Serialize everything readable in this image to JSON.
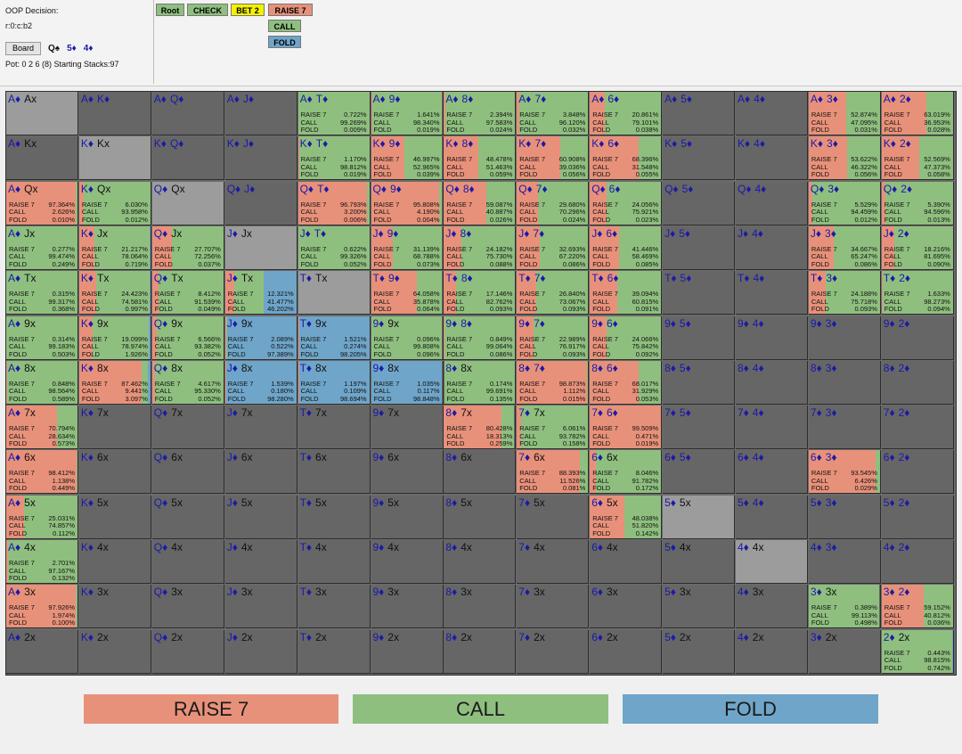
{
  "info": {
    "decision_label": "OOP Decision:",
    "node_path": "r:0:c:b2",
    "board_button": "Board",
    "board_cards": [
      "Q♠",
      "5♦",
      "4♦"
    ],
    "pot_text": "Pot: 0 2 6 (8) Starting Stacks:97"
  },
  "colors": {
    "raise": "#e8917a",
    "call": "#8fbf7f",
    "fold": "#6fa5c9",
    "bet": "#f4f000",
    "cell": "#666666",
    "diag": "#9c9c9c",
    "hand_text": "#1a1aa8"
  },
  "nav": [
    {
      "label": "Root",
      "color": "#8fbf7f"
    },
    {
      "label": "CHECK",
      "color": "#8fbf7f"
    },
    {
      "label": "BET 2",
      "color": "#f4f000"
    },
    {
      "label": "RAISE 7",
      "color": "#e8917a"
    },
    {
      "label": "CALL",
      "color": "#8fbf7f"
    },
    {
      "label": "FOLD",
      "color": "#6fa5c9"
    }
  ],
  "action_names": [
    "RAISE 7",
    "CALL",
    "FOLD"
  ],
  "grid": [
    [
      [
        "A♦ Ax",
        null
      ],
      [
        "A♦ K♦",
        null
      ],
      [
        "A♦ Q♦",
        null
      ],
      [
        "A♦ J♦",
        null
      ],
      [
        "A♦ T♦",
        [
          "0.722%",
          "99.269%",
          "0.009%"
        ]
      ],
      [
        "A♦ 9♦",
        [
          "1.641%",
          "98.340%",
          "0.019%"
        ]
      ],
      [
        "A♦ 8♦",
        [
          "2.394%",
          "97.583%",
          "0.024%"
        ]
      ],
      [
        "A♦ 7♦",
        [
          "3.848%",
          "96.120%",
          "0.032%"
        ]
      ],
      [
        "A♦ 6♦",
        [
          "20.861%",
          "79.101%",
          "0.038%"
        ]
      ],
      [
        "A♦ 5♦",
        null
      ],
      [
        "A♦ 4♦",
        null
      ],
      [
        "A♦ 3♦",
        [
          "52.874%",
          "47.095%",
          "0.031%"
        ]
      ],
      [
        "A♦ 2♦",
        [
          "63.019%",
          "36.953%",
          "0.028%"
        ]
      ]
    ],
    [
      [
        "A♦ Kx",
        null
      ],
      [
        "K♦ Kx",
        null
      ],
      [
        "K♦ Q♦",
        null
      ],
      [
        "K♦ J♦",
        null
      ],
      [
        "K♦ T♦",
        [
          "1.170%",
          "98.812%",
          "0.019%"
        ]
      ],
      [
        "K♦ 9♦",
        [
          "46.997%",
          "52.965%",
          "0.039%"
        ]
      ],
      [
        "K♦ 8♦",
        [
          "48.478%",
          "51.463%",
          "0.059%"
        ]
      ],
      [
        "K♦ 7♦",
        [
          "60.908%",
          "39.036%",
          "0.056%"
        ]
      ],
      [
        "K♦ 6♦",
        [
          "68.396%",
          "31.548%",
          "0.055%"
        ]
      ],
      [
        "K♦ 5♦",
        null
      ],
      [
        "K♦ 4♦",
        null
      ],
      [
        "K♦ 3♦",
        [
          "53.622%",
          "46.322%",
          "0.056%"
        ]
      ],
      [
        "K♦ 2♦",
        [
          "52.569%",
          "47.373%",
          "0.058%"
        ]
      ]
    ],
    [
      [
        "A♦ Qx",
        [
          "97.364%",
          "2.626%",
          "0.010%"
        ]
      ],
      [
        "K♦ Qx",
        [
          "6.030%",
          "93.958%",
          "0.012%"
        ]
      ],
      [
        "Q♦ Qx",
        null
      ],
      [
        "Q♦ J♦",
        null
      ],
      [
        "Q♦ T♦",
        [
          "96.793%",
          "3.200%",
          "0.006%"
        ]
      ],
      [
        "Q♦ 9♦",
        [
          "95.808%",
          "4.190%",
          "0.004%"
        ]
      ],
      [
        "Q♦ 8♦",
        [
          "59.087%",
          "40.887%",
          "0.026%"
        ]
      ],
      [
        "Q♦ 7♦",
        [
          "29.680%",
          "70.296%",
          "0.024%"
        ]
      ],
      [
        "Q♦ 6♦",
        [
          "24.056%",
          "75.921%",
          "0.023%"
        ]
      ],
      [
        "Q♦ 5♦",
        null
      ],
      [
        "Q♦ 4♦",
        null
      ],
      [
        "Q♦ 3♦",
        [
          "5.529%",
          "94.459%",
          "0.012%"
        ]
      ],
      [
        "Q♦ 2♦",
        [
          "5.390%",
          "94.596%",
          "0.013%"
        ]
      ]
    ],
    [
      [
        "A♦ Jx",
        [
          "0.277%",
          "99.474%",
          "0.249%"
        ]
      ],
      [
        "K♦ Jx",
        [
          "21.217%",
          "78.064%",
          "0.719%"
        ]
      ],
      [
        "Q♦ Jx",
        [
          "27.707%",
          "72.256%",
          "0.037%"
        ]
      ],
      [
        "J♦ Jx",
        null
      ],
      [
        "J♦ T♦",
        [
          "0.622%",
          "99.326%",
          "0.052%"
        ]
      ],
      [
        "J♦ 9♦",
        [
          "31.139%",
          "68.788%",
          "0.073%"
        ]
      ],
      [
        "J♦ 8♦",
        [
          "24.182%",
          "75.730%",
          "0.088%"
        ]
      ],
      [
        "J♦ 7♦",
        [
          "32.693%",
          "67.220%",
          "0.086%"
        ]
      ],
      [
        "J♦ 6♦",
        [
          "41.446%",
          "58.469%",
          "0.085%"
        ]
      ],
      [
        "J♦ 5♦",
        null
      ],
      [
        "J♦ 4♦",
        null
      ],
      [
        "J♦ 3♦",
        [
          "34.667%",
          "65.247%",
          "0.086%"
        ]
      ],
      [
        "J♦ 2♦",
        [
          "18.216%",
          "81.695%",
          "0.090%"
        ]
      ]
    ],
    [
      [
        "A♦ Tx",
        [
          "0.315%",
          "99.317%",
          "0.368%"
        ]
      ],
      [
        "K♦ Tx",
        [
          "24.423%",
          "74.581%",
          "0.997%"
        ]
      ],
      [
        "Q♦ Tx",
        [
          "8.412%",
          "91.539%",
          "0.049%"
        ]
      ],
      [
        "J♦ Tx",
        [
          "12.321%",
          "41.477%",
          "46.202%"
        ]
      ],
      [
        "T♦ Tx",
        null
      ],
      [
        "T♦ 9♦",
        [
          "64.058%",
          "35.878%",
          "0.064%"
        ]
      ],
      [
        "T♦ 8♦",
        [
          "17.146%",
          "82.762%",
          "0.093%"
        ]
      ],
      [
        "T♦ 7♦",
        [
          "26.840%",
          "73.067%",
          "0.093%"
        ]
      ],
      [
        "T♦ 6♦",
        [
          "39.094%",
          "60.815%",
          "0.091%"
        ]
      ],
      [
        "T♦ 5♦",
        null
      ],
      [
        "T♦ 4♦",
        null
      ],
      [
        "T♦ 3♦",
        [
          "24.188%",
          "75.718%",
          "0.093%"
        ]
      ],
      [
        "T♦ 2♦",
        [
          "1.633%",
          "98.273%",
          "0.094%"
        ]
      ]
    ],
    [
      [
        "A♦ 9x",
        [
          "0.314%",
          "99.183%",
          "0.503%"
        ]
      ],
      [
        "K♦ 9x",
        [
          "19.099%",
          "78.974%",
          "1.926%"
        ]
      ],
      [
        "Q♦ 9x",
        [
          "6.566%",
          "93.382%",
          "0.052%"
        ]
      ],
      [
        "J♦ 9x",
        [
          "2.089%",
          "0.522%",
          "97.389%"
        ]
      ],
      [
        "T♦ 9x",
        [
          "1.521%",
          "0.274%",
          "98.205%"
        ]
      ],
      [
        "9♦ 9x",
        [
          "0.096%",
          "99.808%",
          "0.096%"
        ]
      ],
      [
        "9♦ 8♦",
        [
          "0.849%",
          "99.064%",
          "0.086%"
        ]
      ],
      [
        "9♦ 7♦",
        [
          "22.989%",
          "76.917%",
          "0.093%"
        ]
      ],
      [
        "9♦ 6♦",
        [
          "24.066%",
          "75.842%",
          "0.092%"
        ]
      ],
      [
        "9♦ 5♦",
        null
      ],
      [
        "9♦ 4♦",
        null
      ],
      [
        "9♦ 3♦",
        null
      ],
      [
        "9♦ 2♦",
        null
      ]
    ],
    [
      [
        "A♦ 8x",
        [
          "0.848%",
          "98.564%",
          "0.589%"
        ]
      ],
      [
        "K♦ 8x",
        [
          "87.462%",
          "9.441%",
          "3.097%"
        ]
      ],
      [
        "Q♦ 8x",
        [
          "4.617%",
          "95.330%",
          "0.052%"
        ]
      ],
      [
        "J♦ 8x",
        [
          "1.539%",
          "0.180%",
          "98.280%"
        ]
      ],
      [
        "T♦ 8x",
        [
          "1.197%",
          "0.109%",
          "98.694%"
        ]
      ],
      [
        "9♦ 8x",
        [
          "1.035%",
          "0.117%",
          "98.848%"
        ]
      ],
      [
        "8♦ 8x",
        [
          "0.174%",
          "99.691%",
          "0.135%"
        ]
      ],
      [
        "8♦ 7♦",
        [
          "98.873%",
          "1.112%",
          "0.015%"
        ]
      ],
      [
        "8♦ 6♦",
        [
          "68.017%",
          "31.929%",
          "0.053%"
        ]
      ],
      [
        "8♦ 5♦",
        null
      ],
      [
        "8♦ 4♦",
        null
      ],
      [
        "8♦ 3♦",
        null
      ],
      [
        "8♦ 2♦",
        null
      ]
    ],
    [
      [
        "A♦ 7x",
        [
          "70.794%",
          "28.634%",
          "0.573%"
        ]
      ],
      [
        "K♦ 7x",
        null
      ],
      [
        "Q♦ 7x",
        null
      ],
      [
        "J♦ 7x",
        null
      ],
      [
        "T♦ 7x",
        null
      ],
      [
        "9♦ 7x",
        null
      ],
      [
        "8♦ 7x",
        [
          "80.428%",
          "18.313%",
          "0.259%"
        ]
      ],
      [
        "7♦ 7x",
        [
          "6.061%",
          "93.782%",
          "0.158%"
        ]
      ],
      [
        "7♦ 6♦",
        [
          "99.509%",
          "0.471%",
          "0.019%"
        ]
      ],
      [
        "7♦ 5♦",
        null
      ],
      [
        "7♦ 4♦",
        null
      ],
      [
        "7♦ 3♦",
        null
      ],
      [
        "7♦ 2♦",
        null
      ]
    ],
    [
      [
        "A♦ 6x",
        [
          "98.412%",
          "1.138%",
          "0.449%"
        ]
      ],
      [
        "K♦ 6x",
        null
      ],
      [
        "Q♦ 6x",
        null
      ],
      [
        "J♦ 6x",
        null
      ],
      [
        "T♦ 6x",
        null
      ],
      [
        "9♦ 6x",
        null
      ],
      [
        "8♦ 6x",
        null
      ],
      [
        "7♦ 6x",
        [
          "88.393%",
          "11.526%",
          "0.081%"
        ]
      ],
      [
        "6♦ 6x",
        [
          "8.046%",
          "91.782%",
          "0.172%"
        ]
      ],
      [
        "6♦ 5♦",
        null
      ],
      [
        "6♦ 4♦",
        null
      ],
      [
        "6♦ 3♦",
        [
          "93.545%",
          "6.426%",
          "0.029%"
        ]
      ],
      [
        "6♦ 2♦",
        null
      ]
    ],
    [
      [
        "A♦ 5x",
        [
          "25.031%",
          "74.857%",
          "0.112%"
        ]
      ],
      [
        "K♦ 5x",
        null
      ],
      [
        "Q♦ 5x",
        null
      ],
      [
        "J♦ 5x",
        null
      ],
      [
        "T♦ 5x",
        null
      ],
      [
        "9♦ 5x",
        null
      ],
      [
        "8♦ 5x",
        null
      ],
      [
        "7♦ 5x",
        null
      ],
      [
        "6♦ 5x",
        [
          "48.038%",
          "51.820%",
          "0.142%"
        ]
      ],
      [
        "5♦ 5x",
        null
      ],
      [
        "5♦ 4♦",
        null
      ],
      [
        "5♦ 3♦",
        null
      ],
      [
        "5♦ 2♦",
        null
      ]
    ],
    [
      [
        "A♦ 4x",
        [
          "2.701%",
          "97.167%",
          "0.132%"
        ]
      ],
      [
        "K♦ 4x",
        null
      ],
      [
        "Q♦ 4x",
        null
      ],
      [
        "J♦ 4x",
        null
      ],
      [
        "T♦ 4x",
        null
      ],
      [
        "9♦ 4x",
        null
      ],
      [
        "8♦ 4x",
        null
      ],
      [
        "7♦ 4x",
        null
      ],
      [
        "6♦ 4x",
        null
      ],
      [
        "5♦ 4x",
        null
      ],
      [
        "4♦ 4x",
        null
      ],
      [
        "4♦ 3♦",
        null
      ],
      [
        "4♦ 2♦",
        null
      ]
    ],
    [
      [
        "A♦ 3x",
        [
          "97.926%",
          "1.974%",
          "0.100%"
        ]
      ],
      [
        "K♦ 3x",
        null
      ],
      [
        "Q♦ 3x",
        null
      ],
      [
        "J♦ 3x",
        null
      ],
      [
        "T♦ 3x",
        null
      ],
      [
        "9♦ 3x",
        null
      ],
      [
        "8♦ 3x",
        null
      ],
      [
        "7♦ 3x",
        null
      ],
      [
        "6♦ 3x",
        null
      ],
      [
        "5♦ 3x",
        null
      ],
      [
        "4♦ 3x",
        null
      ],
      [
        "3♦ 3x",
        [
          "0.389%",
          "99.113%",
          "0.498%"
        ]
      ],
      [
        "3♦ 2♦",
        [
          "59.152%",
          "40.812%",
          "0.036%"
        ]
      ]
    ],
    [
      [
        "A♦ 2x",
        null
      ],
      [
        "K♦ 2x",
        null
      ],
      [
        "Q♦ 2x",
        null
      ],
      [
        "J♦ 2x",
        null
      ],
      [
        "T♦ 2x",
        null
      ],
      [
        "9♦ 2x",
        null
      ],
      [
        "8♦ 2x",
        null
      ],
      [
        "7♦ 2x",
        null
      ],
      [
        "6♦ 2x",
        null
      ],
      [
        "5♦ 2x",
        null
      ],
      [
        "4♦ 2x",
        null
      ],
      [
        "3♦ 2x",
        null
      ],
      [
        "2♦ 2x",
        [
          "0.443%",
          "98.815%",
          "0.742%"
        ]
      ]
    ]
  ],
  "legend": [
    {
      "label": "RAISE 7",
      "color": "#e8917a"
    },
    {
      "label": "CALL",
      "color": "#8fbf7f"
    },
    {
      "label": "FOLD",
      "color": "#6fa5c9"
    }
  ]
}
